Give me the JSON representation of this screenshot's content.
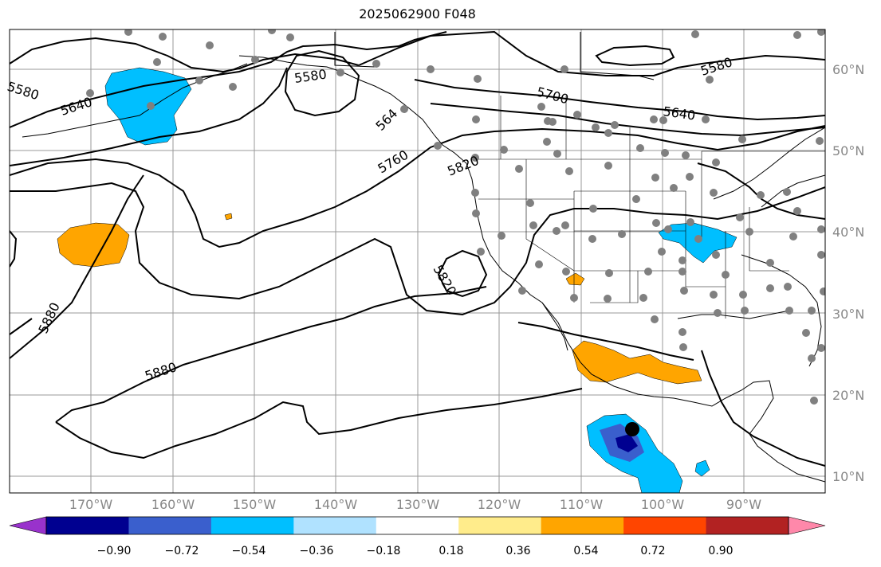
{
  "title": "2025062900 F048",
  "lat_labels": [
    "60°N",
    "50°N",
    "40°N",
    "30°N",
    "20°N",
    "10°N"
  ],
  "lon_labels": [
    "170°W",
    "160°W",
    "150°W",
    "140°W",
    "130°W",
    "120°W",
    "110°W",
    "100°W",
    "90°W"
  ],
  "contour_labels": [
    "5580",
    "5640",
    "5580",
    "5700",
    "5640",
    "5580",
    "5760",
    "5820",
    "5820",
    "5880",
    "5880",
    "564"
  ],
  "colorbar": {
    "colors": [
      "#9932cc",
      "#000090",
      "#3a5fcd",
      "#00bfff",
      "#b0e2ff",
      "#ffffff",
      "#ffec8b",
      "#ffa500",
      "#ff4500",
      "#b22222",
      "#ff88aa"
    ],
    "tick_labels": [
      "−0.90",
      "−0.72",
      "−0.54",
      "−0.36",
      "−0.18",
      "0.18",
      "0.36",
      "0.54",
      "0.72",
      "0.90"
    ]
  },
  "colors": {
    "contour": "#000000",
    "grid": "#888888",
    "station": "#808080",
    "positive_fill": "#ffa500",
    "negative_fill": "#00bfff"
  }
}
